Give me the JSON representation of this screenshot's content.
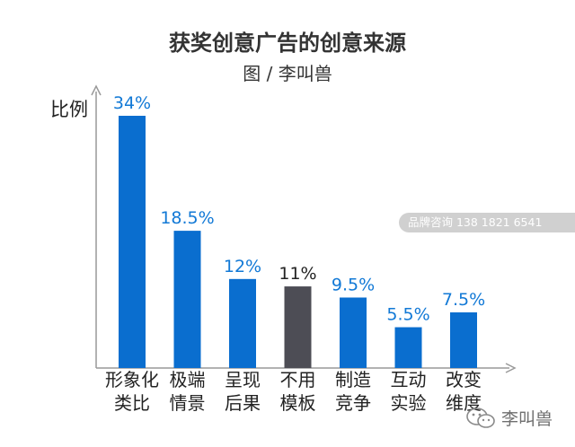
{
  "page": {
    "title": "获奖创意广告的创意来源",
    "subtitle": "图 / 李叫兽",
    "watermark": "品牌咨询 138 1821 6541",
    "brand": "李叫兽"
  },
  "colors": {
    "bar_blue": "#0a6ecf",
    "bar_gray": "#4d4d55",
    "value_label": "#1279d6",
    "axis": "#999999"
  },
  "chart_data": {
    "type": "bar",
    "ylabel": "比例",
    "xlabel": "",
    "ylim": [
      0,
      36
    ],
    "grid": false,
    "categories": [
      [
        "形象化",
        "类比"
      ],
      [
        "极端",
        "情景"
      ],
      [
        "呈现",
        "后果"
      ],
      [
        "不用",
        "模板"
      ],
      [
        "制造",
        "竞争"
      ],
      [
        "互动",
        "实验"
      ],
      [
        "改变",
        "维度"
      ]
    ],
    "values": [
      34,
      18.5,
      12,
      11,
      9.5,
      5.5,
      7.5
    ],
    "data_labels": [
      "34%",
      "18.5%",
      "12%",
      "11%",
      "9.5%",
      "5.5%",
      "7.5%"
    ],
    "highlight_index": 3
  }
}
